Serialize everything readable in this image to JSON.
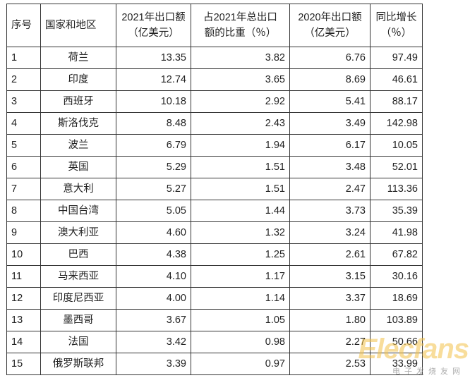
{
  "table": {
    "headers": {
      "index": "序号",
      "region": "国家和地区",
      "export_2021_line1": "2021年出口额",
      "export_2021_line2": "（亿美元）",
      "share_line1": "占2021年总出口",
      "share_line2": "额的比重（％）",
      "export_2020_line1": "2020年出口额",
      "export_2020_line2": "（亿美元）",
      "yoy_line1": "同比增长",
      "yoy_line2": "（％）"
    },
    "rows": [
      {
        "index": "1",
        "region": "荷兰",
        "export_2021": "13.35",
        "share": "3.82",
        "export_2020": "6.76",
        "yoy": "97.49"
      },
      {
        "index": "2",
        "region": "印度",
        "export_2021": "12.74",
        "share": "3.65",
        "export_2020": "8.69",
        "yoy": "46.61"
      },
      {
        "index": "3",
        "region": "西班牙",
        "export_2021": "10.18",
        "share": "2.92",
        "export_2020": "5.41",
        "yoy": "88.17"
      },
      {
        "index": "4",
        "region": "斯洛伐克",
        "export_2021": "8.48",
        "share": "2.43",
        "export_2020": "3.49",
        "yoy": "142.98"
      },
      {
        "index": "5",
        "region": "波兰",
        "export_2021": "6.79",
        "share": "1.94",
        "export_2020": "6.17",
        "yoy": "10.05"
      },
      {
        "index": "6",
        "region": "英国",
        "export_2021": "5.29",
        "share": "1.51",
        "export_2020": "3.48",
        "yoy": "52.01"
      },
      {
        "index": "7",
        "region": "意大利",
        "export_2021": "5.27",
        "share": "1.51",
        "export_2020": "2.47",
        "yoy": "113.36"
      },
      {
        "index": "8",
        "region": "中国台湾",
        "export_2021": "5.05",
        "share": "1.44",
        "export_2020": "3.73",
        "yoy": "35.39"
      },
      {
        "index": "9",
        "region": "澳大利亚",
        "export_2021": "4.60",
        "share": "1.32",
        "export_2020": "3.24",
        "yoy": "41.98"
      },
      {
        "index": "10",
        "region": "巴西",
        "export_2021": "4.38",
        "share": "1.25",
        "export_2020": "2.61",
        "yoy": "67.82"
      },
      {
        "index": "11",
        "region": "马来西亚",
        "export_2021": "4.10",
        "share": "1.17",
        "export_2020": "3.15",
        "yoy": "30.16"
      },
      {
        "index": "12",
        "region": "印度尼西亚",
        "export_2021": "4.00",
        "share": "1.14",
        "export_2020": "3.37",
        "yoy": "18.69"
      },
      {
        "index": "13",
        "region": "墨西哥",
        "export_2021": "3.67",
        "share": "1.05",
        "export_2020": "1.80",
        "yoy": "103.89"
      },
      {
        "index": "14",
        "region": "法国",
        "export_2021": "3.42",
        "share": "0.98",
        "export_2020": "2.27",
        "yoy": "50.66"
      },
      {
        "index": "15",
        "region": "俄罗斯联邦",
        "export_2021": "3.39",
        "share": "0.97",
        "export_2020": "2.53",
        "yoy": "33.99"
      }
    ]
  },
  "watermark": {
    "brand": "Elecfans",
    "subtitle": "电子发烧友网"
  }
}
